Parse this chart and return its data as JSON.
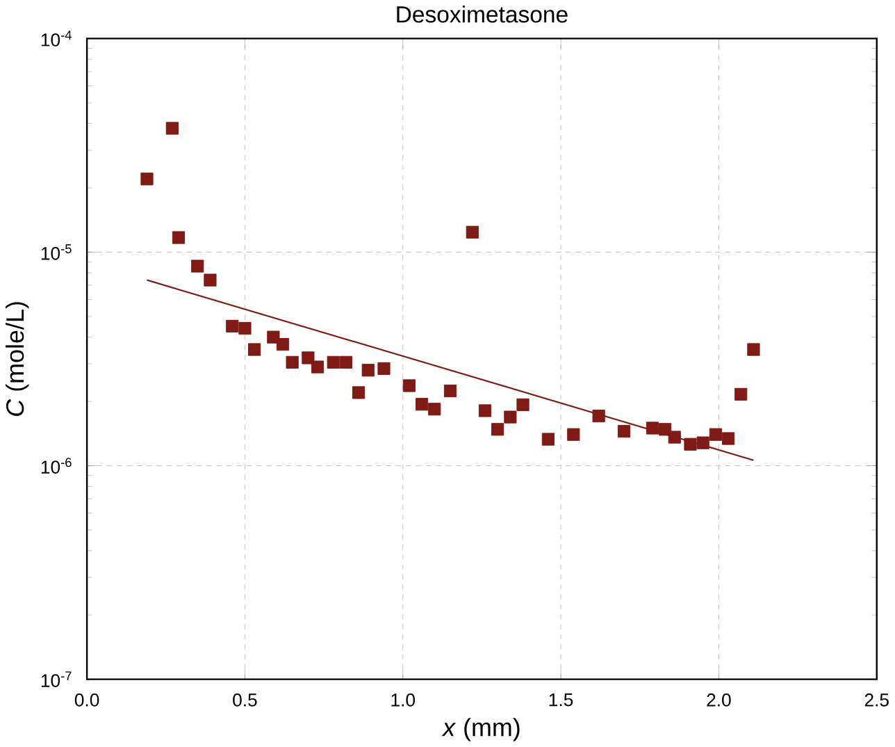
{
  "chart_data": {
    "type": "scatter",
    "title": "Desoximetasone",
    "xlabel": "*x* (mm)",
    "ylabel": "*C* (mole/L)",
    "log": "y",
    "grid": true,
    "marker": "square",
    "xlim": [
      0,
      2.5
    ],
    "ylim": [
      1e-07,
      0.0001
    ],
    "xticks": [
      {
        "value": 0,
        "label": "0.0"
      },
      {
        "value": 0.5,
        "label": "0.5"
      },
      {
        "value": 1,
        "label": "1.0"
      },
      {
        "value": 1.5,
        "label": "1.5"
      },
      {
        "value": 2,
        "label": "2.0"
      },
      {
        "value": 2.5,
        "label": "2.5"
      }
    ],
    "yticks": [
      {
        "value": 1e-07,
        "label": "10$^{-7}$"
      },
      {
        "value": 1e-06,
        "label": "10$^{-6}$"
      },
      {
        "value": 1e-05,
        "label": "10$^{-5}$"
      },
      {
        "value": 0.0001,
        "label": "10$^{-4}$"
      }
    ],
    "series": [
      {
        "color": "#7f1a14",
        "x": [
          0.19,
          0.27,
          0.29,
          0.35,
          0.39,
          0.46,
          0.5,
          0.53,
          0.59,
          0.62,
          0.65,
          0.7,
          0.73,
          0.78,
          0.82,
          0.86,
          0.89,
          0.94,
          1.02,
          1.06,
          1.1,
          1.15,
          1.22,
          1.26,
          1.3,
          1.34,
          1.38,
          1.46,
          1.54,
          1.62,
          1.7,
          1.79,
          1.83,
          1.86,
          1.91,
          1.95,
          1.99,
          2.03,
          2.07,
          2.11
        ],
        "values": [
          2.2e-05,
          3.8e-05,
          1.17e-05,
          8.6e-06,
          7.4e-06,
          4.5e-06,
          4.4e-06,
          3.5e-06,
          4e-06,
          3.7e-06,
          3.05e-06,
          3.2e-06,
          2.9e-06,
          3.05e-06,
          3.05e-06,
          2.2e-06,
          2.8e-06,
          2.85e-06,
          2.37e-06,
          1.94e-06,
          1.84e-06,
          2.24e-06,
          1.24e-05,
          1.81e-06,
          1.48e-06,
          1.69e-06,
          1.93e-06,
          1.33e-06,
          1.4e-06,
          1.71e-06,
          1.45e-06,
          1.5e-06,
          1.48e-06,
          1.36e-06,
          1.26e-06,
          1.28e-06,
          1.4e-06,
          1.34e-06,
          2.16e-06,
          3.5e-06
        ]
      },
      {
        "type": "line",
        "color": "#7f1a14",
        "marker": "none",
        "x": [
          0.19,
          2.11
        ],
        "values": [
          7.4e-06,
          1.06e-06
        ]
      }
    ]
  }
}
